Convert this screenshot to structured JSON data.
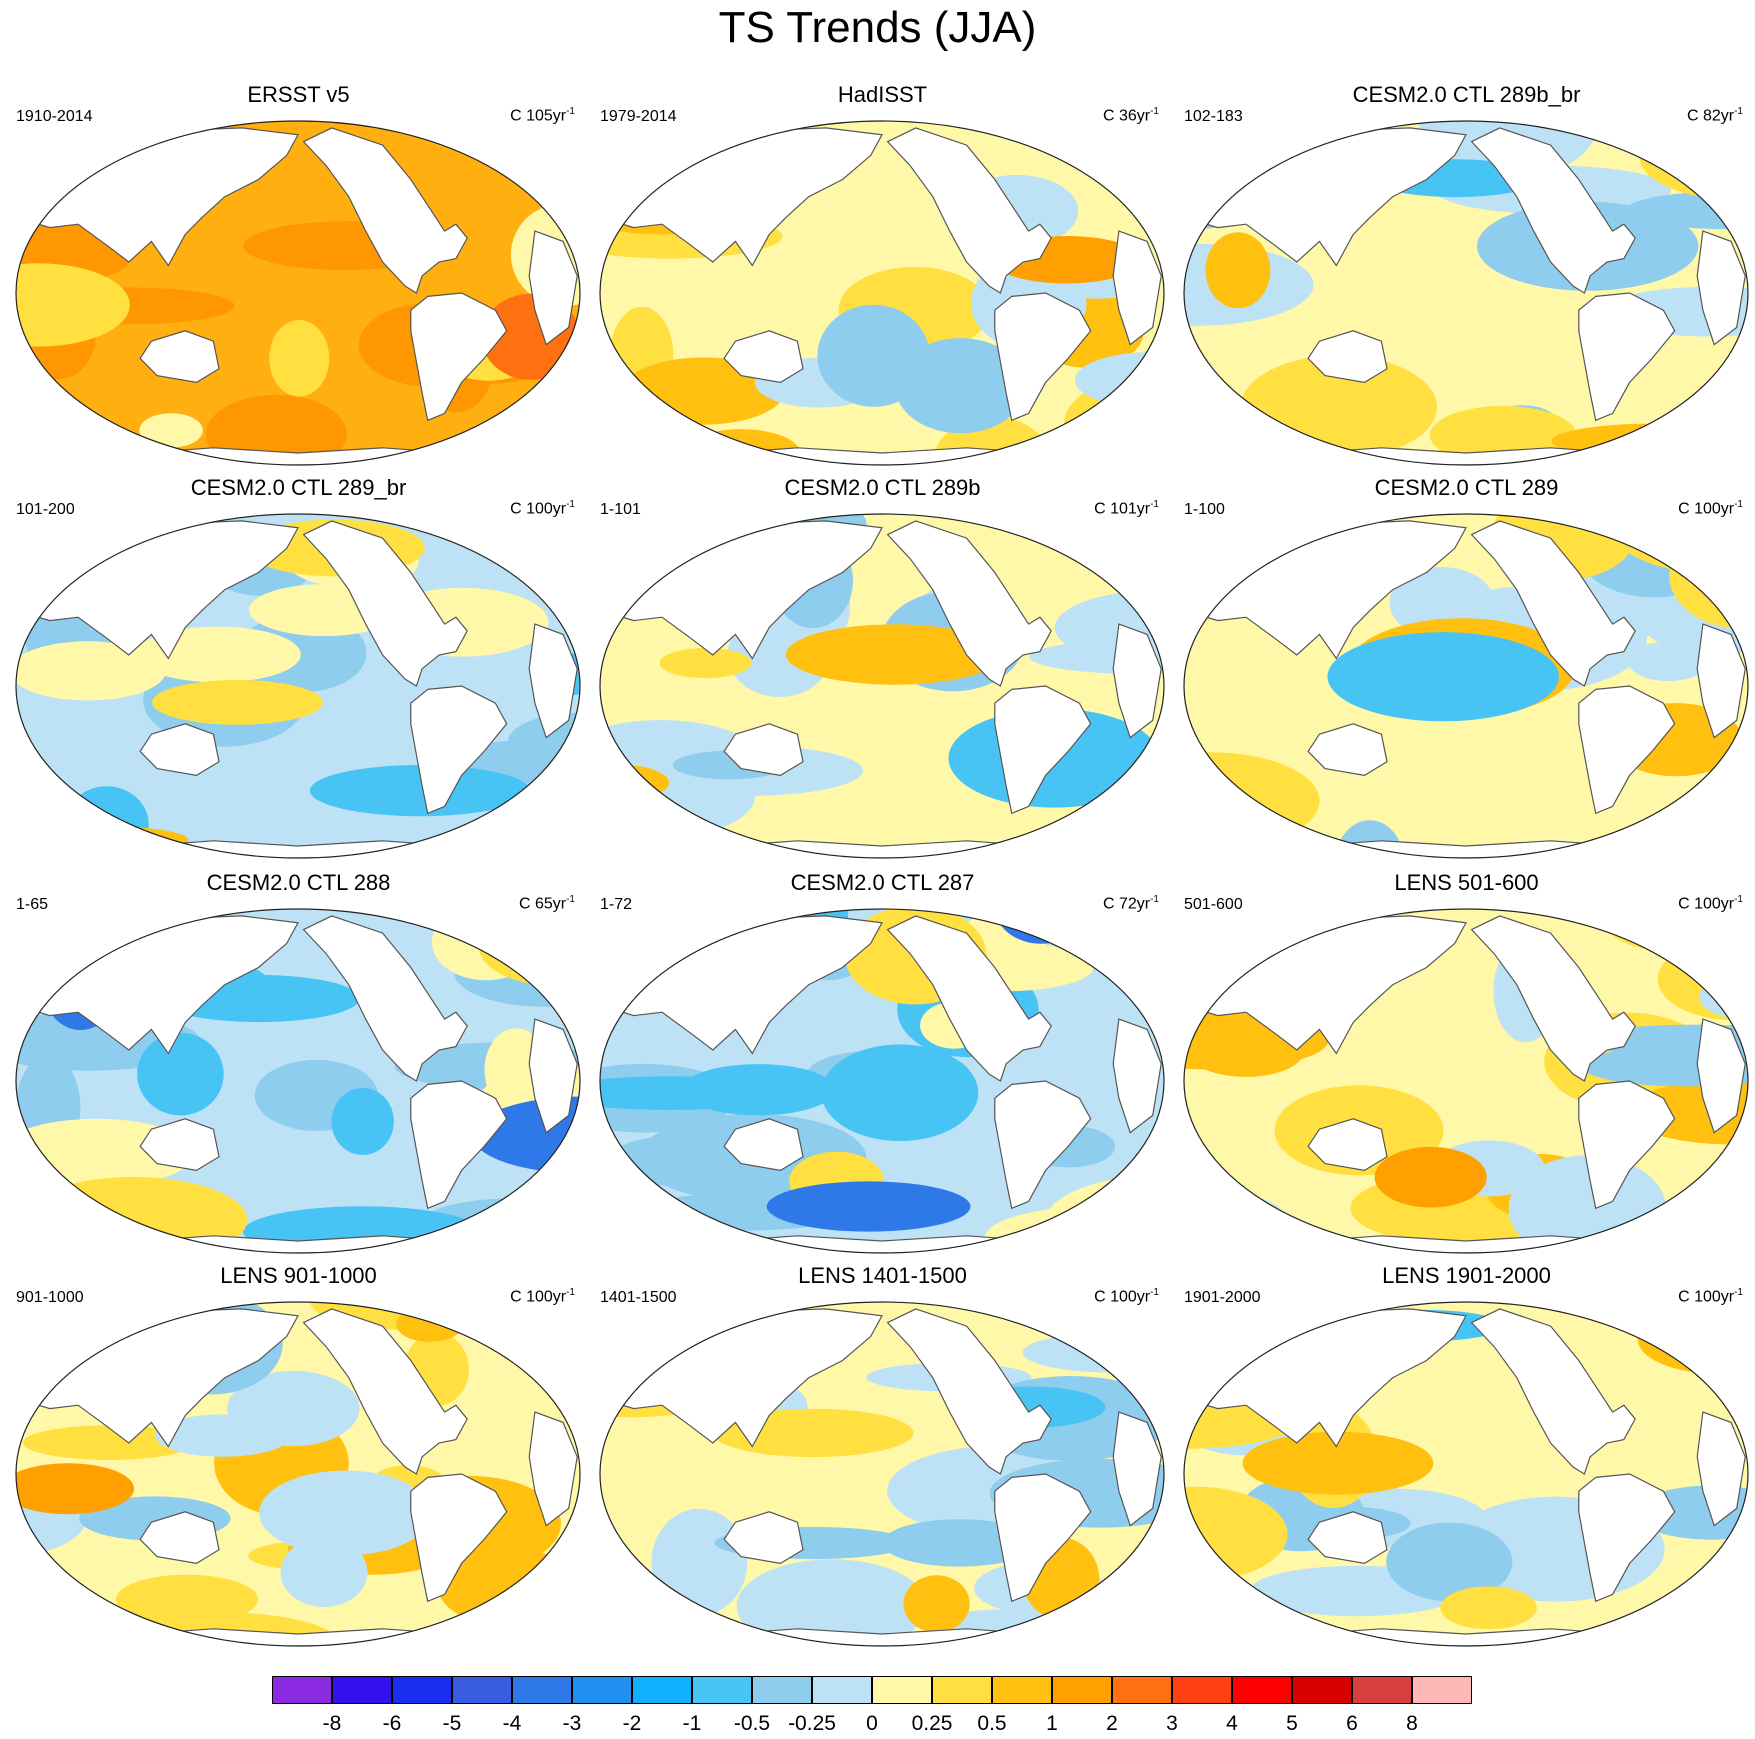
{
  "title": "TS Trends (JJA)",
  "panels": [
    {
      "title": "ERSST v5",
      "range": "1910-2014",
      "units": "C 105yr",
      "sup": "-1",
      "mode": "warm"
    },
    {
      "title": "HadISST",
      "range": "1979-2014",
      "units": "C 36yr",
      "sup": "-1",
      "mode": "mixwarm"
    },
    {
      "title": "CESM2.0 CTL 289b_br",
      "range": "102-183",
      "units": "C 82yr",
      "sup": "-1",
      "mode": "mix"
    },
    {
      "title": "CESM2.0 CTL 289_br",
      "range": "101-200",
      "units": "C 100yr",
      "sup": "-1",
      "mode": "mixcool"
    },
    {
      "title": "CESM2.0 CTL 289b",
      "range": "1-101",
      "units": "C 101yr",
      "sup": "-1",
      "mode": "mix"
    },
    {
      "title": "CESM2.0 CTL 289",
      "range": "1-100",
      "units": "C 100yr",
      "sup": "-1",
      "mode": "mix"
    },
    {
      "title": "CESM2.0 CTL 288",
      "range": "1-65",
      "units": "C 65yr",
      "sup": "-1",
      "mode": "cool"
    },
    {
      "title": "CESM2.0 CTL 287",
      "range": "1-72",
      "units": "C 72yr",
      "sup": "-1",
      "mode": "cool"
    },
    {
      "title": "LENS 501-600",
      "range": "501-600",
      "units": "C 100yr",
      "sup": "-1",
      "mode": "mixwarm"
    },
    {
      "title": "LENS 901-1000",
      "range": "901-1000",
      "units": "C 100yr",
      "sup": "-1",
      "mode": "mixwarm"
    },
    {
      "title": "LENS 1401-1500",
      "range": "1401-1500",
      "units": "C 100yr",
      "sup": "-1",
      "mode": "mix"
    },
    {
      "title": "LENS 1901-2000",
      "range": "1901-2000",
      "units": "C 100yr",
      "sup": "-1",
      "mode": "mix"
    }
  ],
  "colorbar": {
    "colors": [
      "#8a2be2",
      "#3311ee",
      "#1a2cf0",
      "#3a5ce0",
      "#2e78e8",
      "#1f90f0",
      "#10b0ff",
      "#48c4f4",
      "#8ecdee",
      "#bde2f6",
      "#fff8a8",
      "#ffe040",
      "#ffc010",
      "#ffa000",
      "#ff7010",
      "#ff4010",
      "#ff0000",
      "#d80000",
      "#d84040",
      "#ffb8b8"
    ],
    "labels": [
      "-8",
      "-6",
      "-5",
      "-4",
      "-3",
      "-2",
      "-1",
      "-0.5",
      "-0.25",
      "0",
      "0.25",
      "0.5",
      "1",
      "2",
      "3",
      "4",
      "5",
      "6",
      "8"
    ]
  }
}
